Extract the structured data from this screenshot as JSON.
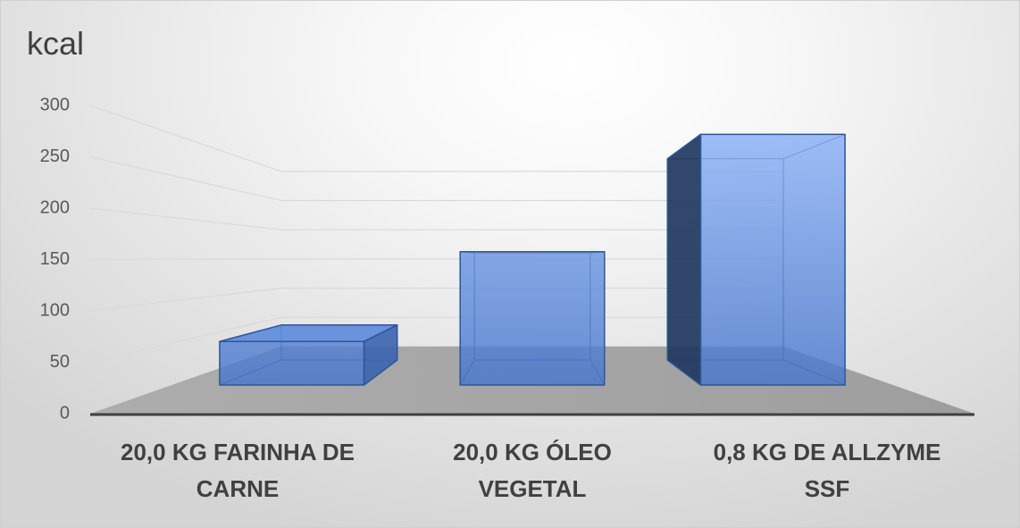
{
  "chart_data": {
    "type": "bar",
    "3d": true,
    "title": "kcal",
    "categories": [
      "20,0 KG FARINHA DE CARNE",
      "20,0 KG ÓLEO VEGETAL",
      "0,8 KG DE ALLZYME SSF"
    ],
    "values": [
      52,
      159,
      299
    ],
    "ylim": [
      0,
      300
    ],
    "yticks": [
      0,
      50,
      100,
      150,
      200,
      250,
      300
    ],
    "grid": true,
    "legend": "none"
  },
  "colors": {
    "bar_front_top": "#86aef5",
    "bar_front_bottom": "#4675cc",
    "bar_edge": "#2f5597",
    "bar_side_left": "#20375f",
    "bar_side_right": "#3b63b0",
    "bar_top": "#5c89dc",
    "floor_light": "#adadad",
    "floor_dark": "#9e9e9e",
    "gridline": "#d9d9d9",
    "axis_line": "#404040"
  }
}
